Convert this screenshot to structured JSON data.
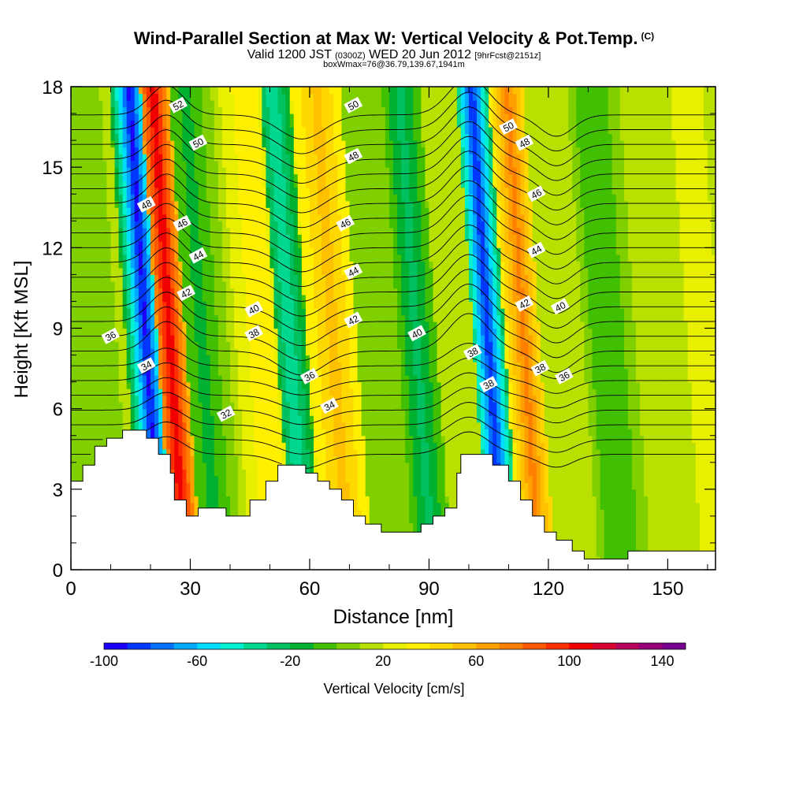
{
  "header": {
    "title": "Wind-Parallel Section at Max W: Vertical Velocity & Pot.Temp.",
    "copyright": "(C)",
    "subtitle_main": "Valid 1200 JST",
    "subtitle_z": "(0300Z)",
    "subtitle_date": "WED 20 Jun 2012",
    "subtitle_fcst": "[9hrFcst@2151z]",
    "box_info": "boxWmax=76@36.79,139.67,1941m"
  },
  "chart_data": {
    "type": "heatmap",
    "title": "Wind-Parallel Section at Max W: Vertical Velocity & Pot.Temp.",
    "xlabel": "Distance [nm]",
    "ylabel": "Height [Kft MSL]",
    "xlim": [
      0,
      162
    ],
    "ylim": [
      0,
      18
    ],
    "x_ticks": [
      "0",
      "30",
      "60",
      "90",
      "120",
      "150"
    ],
    "y_ticks": [
      "0",
      "3",
      "6",
      "9",
      "12",
      "15",
      "18"
    ],
    "x_tick_values": [
      0,
      30,
      60,
      90,
      120,
      150
    ],
    "y_tick_values": [
      0,
      3,
      6,
      9,
      12,
      15,
      18
    ],
    "colorbar": {
      "label": "Vertical Velocity [cm/s]",
      "min": -100,
      "max": 150,
      "step": 10,
      "tick_labels": [
        "-100",
        "-60",
        "-20",
        "20",
        "60",
        "100",
        "140"
      ],
      "colors": [
        "#1c00ff",
        "#0038ff",
        "#0070ff",
        "#00a8ff",
        "#00dcff",
        "#00f0d0",
        "#00d890",
        "#00c060",
        "#00b030",
        "#40c000",
        "#80d000",
        "#b8e000",
        "#e8f000",
        "#fff000",
        "#ffd800",
        "#ffc000",
        "#ffa000",
        "#ff8000",
        "#ff5a00",
        "#ff3000",
        "#f00000",
        "#d80030",
        "#b8005a",
        "#98007a",
        "#780090"
      ]
    },
    "velocity_bands": [
      {
        "x": 3,
        "w": 0,
        "hw": 6
      },
      {
        "x": 9,
        "w": 8,
        "hw": 4
      },
      {
        "x": 20,
        "w": -95,
        "hw": 3.5
      },
      {
        "x": 26,
        "w": 110,
        "hw": 4
      },
      {
        "x": 34,
        "w": -15,
        "hw": 4
      },
      {
        "x": 49,
        "w": 40,
        "hw": 5
      },
      {
        "x": 56,
        "w": -40,
        "hw": 4
      },
      {
        "x": 67,
        "w": 55,
        "hw": 6
      },
      {
        "x": 78,
        "w": 0,
        "hw": 5
      },
      {
        "x": 88,
        "w": -25,
        "hw": 4
      },
      {
        "x": 98,
        "w": 10,
        "hw": 4
      },
      {
        "x": 106,
        "w": -90,
        "hw": 3.5
      },
      {
        "x": 115,
        "w": 75,
        "hw": 4
      },
      {
        "x": 124,
        "w": 15,
        "hw": 5
      },
      {
        "x": 136,
        "w": -10,
        "hw": 5
      },
      {
        "x": 150,
        "w": 15,
        "hw": 5
      },
      {
        "x": 160,
        "w": 30,
        "hw": 4
      }
    ],
    "terrain": [
      [
        0,
        3.3
      ],
      [
        3,
        3.3
      ],
      [
        3,
        3.9
      ],
      [
        6,
        3.9
      ],
      [
        6,
        4.6
      ],
      [
        9,
        4.6
      ],
      [
        9,
        4.9
      ],
      [
        13,
        4.9
      ],
      [
        13,
        5.2
      ],
      [
        19,
        5.2
      ],
      [
        19,
        4.9
      ],
      [
        22,
        4.9
      ],
      [
        22,
        4.3
      ],
      [
        25,
        4.3
      ],
      [
        25,
        3.6
      ],
      [
        26,
        3.6
      ],
      [
        26,
        2.6
      ],
      [
        29,
        2.6
      ],
      [
        29,
        2.0
      ],
      [
        32,
        2.0
      ],
      [
        32,
        2.3
      ],
      [
        39,
        2.3
      ],
      [
        39,
        2.0
      ],
      [
        45,
        2.0
      ],
      [
        45,
        2.6
      ],
      [
        49,
        2.6
      ],
      [
        49,
        3.3
      ],
      [
        52,
        3.3
      ],
      [
        52,
        3.9
      ],
      [
        59,
        3.9
      ],
      [
        59,
        3.6
      ],
      [
        62,
        3.6
      ],
      [
        62,
        3.3
      ],
      [
        65,
        3.3
      ],
      [
        65,
        3.0
      ],
      [
        68,
        3.0
      ],
      [
        68,
        2.6
      ],
      [
        71,
        2.6
      ],
      [
        71,
        2.0
      ],
      [
        74,
        2.0
      ],
      [
        74,
        1.7
      ],
      [
        78,
        1.7
      ],
      [
        78,
        1.4
      ],
      [
        88,
        1.4
      ],
      [
        88,
        1.7
      ],
      [
        91,
        1.7
      ],
      [
        91,
        2.0
      ],
      [
        94,
        2.0
      ],
      [
        94,
        2.3
      ],
      [
        97,
        2.3
      ],
      [
        97,
        3.6
      ],
      [
        98,
        3.6
      ],
      [
        98,
        4.3
      ],
      [
        106,
        4.3
      ],
      [
        106,
        3.9
      ],
      [
        110,
        3.9
      ],
      [
        110,
        3.3
      ],
      [
        113,
        3.3
      ],
      [
        113,
        2.6
      ],
      [
        116,
        2.6
      ],
      [
        116,
        2.0
      ],
      [
        119,
        2.0
      ],
      [
        119,
        1.4
      ],
      [
        122,
        1.4
      ],
      [
        122,
        1.1
      ],
      [
        126,
        1.1
      ],
      [
        126,
        0.7
      ],
      [
        129,
        0.7
      ],
      [
        129,
        0.4
      ],
      [
        140,
        0.4
      ],
      [
        140,
        0.7
      ],
      [
        162,
        0.7
      ]
    ],
    "theta_contours": {
      "levels_K": [
        30,
        31,
        32,
        33,
        34,
        35,
        36,
        37,
        38,
        39,
        40,
        41,
        42,
        43,
        44,
        45,
        46,
        47,
        48,
        49,
        50,
        51,
        52,
        53
      ],
      "labels": [
        {
          "text": "52",
          "x": 27,
          "y": 17.3
        },
        {
          "text": "50",
          "x": 32,
          "y": 15.9
        },
        {
          "text": "48",
          "x": 19,
          "y": 13.6
        },
        {
          "text": "46",
          "x": 28,
          "y": 12.9
        },
        {
          "text": "44",
          "x": 32,
          "y": 11.7
        },
        {
          "text": "42",
          "x": 29,
          "y": 10.3
        },
        {
          "text": "40",
          "x": 46,
          "y": 9.7
        },
        {
          "text": "38",
          "x": 46,
          "y": 8.8
        },
        {
          "text": "36",
          "x": 10,
          "y": 8.7
        },
        {
          "text": "34",
          "x": 19,
          "y": 7.6
        },
        {
          "text": "32",
          "x": 39,
          "y": 5.8
        },
        {
          "text": "50",
          "x": 71,
          "y": 17.3
        },
        {
          "text": "48",
          "x": 71,
          "y": 15.4
        },
        {
          "text": "46",
          "x": 69,
          "y": 12.9
        },
        {
          "text": "44",
          "x": 71,
          "y": 11.1
        },
        {
          "text": "42",
          "x": 71,
          "y": 9.3
        },
        {
          "text": "40",
          "x": 87,
          "y": 8.8
        },
        {
          "text": "38",
          "x": 101,
          "y": 8.1
        },
        {
          "text": "36",
          "x": 60,
          "y": 7.2
        },
        {
          "text": "34",
          "x": 65,
          "y": 6.1
        },
        {
          "text": "50",
          "x": 110,
          "y": 16.5
        },
        {
          "text": "48",
          "x": 114,
          "y": 15.9
        },
        {
          "text": "46",
          "x": 117,
          "y": 14.0
        },
        {
          "text": "44",
          "x": 117,
          "y": 11.9
        },
        {
          "text": "42",
          "x": 114,
          "y": 9.9
        },
        {
          "text": "40",
          "x": 123,
          "y": 9.8
        },
        {
          "text": "38",
          "x": 118,
          "y": 7.5
        },
        {
          "text": "38",
          "x": 105,
          "y": 6.9
        },
        {
          "text": "36",
          "x": 124,
          "y": 7.2
        }
      ]
    },
    "grid": false,
    "legend": "colorbar-bottom"
  },
  "axis_labels": {
    "x": "Distance [nm]",
    "y": "Height [Kft MSL]"
  }
}
